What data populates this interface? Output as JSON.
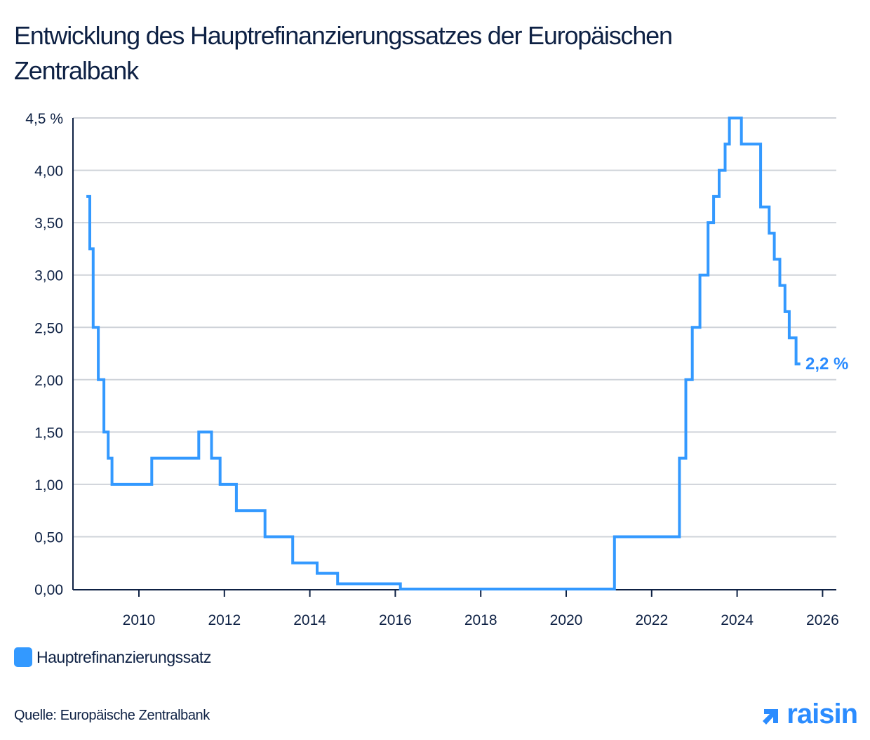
{
  "title": "Entwicklung des Hauptrefinanzierungssatzes der Europäischen Zentralbank",
  "legend": {
    "label": "Hauptrefinanzierungssatz",
    "color": "#3399ff"
  },
  "source": "Quelle: Europäische Zentralbank",
  "logo": {
    "text": "raisin",
    "color": "#2b8cff"
  },
  "end_label": "2,2 %",
  "chart_data": {
    "type": "line",
    "title": "Entwicklung des Hauptrefinanzierungssatzes der Europäischen Zentralbank",
    "xlabel": "",
    "ylabel": "",
    "xlim": [
      2008.6,
      2026.3
    ],
    "ylim": [
      0,
      4.5
    ],
    "grid": true,
    "legend_position": "bottom-left",
    "x_ticks": [
      "2010",
      "2012",
      "2014",
      "2016",
      "2018",
      "2020",
      "2022",
      "2024",
      "2026"
    ],
    "y_ticks": [
      "0,00",
      "0,50",
      "1,00",
      "1,50",
      "2,00",
      "2,50",
      "3,00",
      "3,50",
      "4,00",
      "4,5 %"
    ],
    "step": "post",
    "series": [
      {
        "name": "Hauptrefinanzierungssatz",
        "color": "#3399ff",
        "points": [
          [
            2008.77,
            3.75
          ],
          [
            2008.85,
            3.25
          ],
          [
            2008.93,
            2.5
          ],
          [
            2009.05,
            2.0
          ],
          [
            2009.18,
            1.5
          ],
          [
            2009.28,
            1.25
          ],
          [
            2009.37,
            1.0
          ],
          [
            2010.3,
            1.25
          ],
          [
            2011.4,
            1.5
          ],
          [
            2011.7,
            1.25
          ],
          [
            2011.9,
            1.0
          ],
          [
            2012.28,
            0.75
          ],
          [
            2012.95,
            0.5
          ],
          [
            2013.6,
            0.25
          ],
          [
            2014.17,
            0.15
          ],
          [
            2014.65,
            0.05
          ],
          [
            2016.12,
            0.0
          ],
          [
            2021.13,
            0.5
          ],
          [
            2022.65,
            1.25
          ],
          [
            2022.8,
            2.0
          ],
          [
            2022.95,
            2.5
          ],
          [
            2023.13,
            3.0
          ],
          [
            2023.32,
            3.5
          ],
          [
            2023.45,
            3.75
          ],
          [
            2023.58,
            4.0
          ],
          [
            2023.72,
            4.25
          ],
          [
            2023.82,
            4.5
          ],
          [
            2024.1,
            4.25
          ],
          [
            2024.55,
            3.65
          ],
          [
            2024.75,
            3.4
          ],
          [
            2024.87,
            3.15
          ],
          [
            2025.0,
            2.9
          ],
          [
            2025.12,
            2.65
          ],
          [
            2025.22,
            2.4
          ],
          [
            2025.38,
            2.15
          ],
          [
            2025.48,
            2.15
          ]
        ]
      }
    ],
    "annotations": [
      {
        "text": "2,2 %",
        "x": 2025.48,
        "y": 2.15
      }
    ]
  }
}
